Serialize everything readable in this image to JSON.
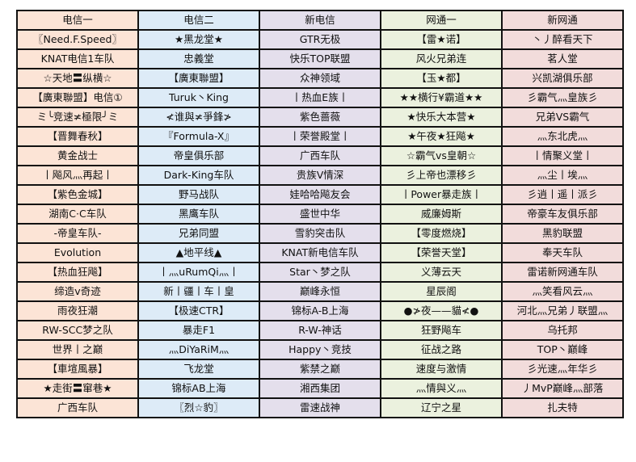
{
  "column_colors": [
    "#fce4d6",
    "#ddebf7",
    "#e4dfec",
    "#ebf1de",
    "#f2dcdb"
  ],
  "headers": [
    "电信一",
    "电信二",
    "新电信",
    "网通一",
    "新网通"
  ],
  "rows": [
    [
      "〖Need.F.Speed〗",
      "★黑龙堂★",
      "GTR无极",
      "【雷★诺】",
      "丶丿醉看天下"
    ],
    [
      "KNAT电信1车队",
      "忠義堂",
      "快乐TOP联盟",
      "风火兄弟连",
      "茗人堂"
    ],
    [
      "☆天地〓纵横☆",
      "【廣東聯盟】",
      "众神领域",
      "【玉★都】",
      "兴凯湖俱乐部"
    ],
    [
      "【廣東聯盟】电信①",
      "Turuk丶King",
      "丨热血E族丨",
      "★★横行¥霸道★★",
      "彡霸气灬皇族彡"
    ],
    [
      "ミ╰竞速≭極限╯ミ",
      "≮谁與≭爭鋒≯",
      "紫色蔷薇",
      "★快乐大本营★",
      "兄弟VS霸气"
    ],
    [
      "【晋舞春秋】",
      "『Formula-X』",
      "丨荣誉殿堂丨",
      "★午夜★狂飚★",
      "灬东北虎灬"
    ],
    [
      "黄金战士",
      "帝皇俱乐部",
      "广西车队",
      "☆霸气vs皇朝☆",
      "丨情聚义堂丨"
    ],
    [
      "丨飚风灬再起丨",
      "Dark-King车队",
      "贵族V情深",
      "彡上帝也漂移彡",
      "灬尘丨埃灬"
    ],
    [
      "【紫色金城】",
      "野马战队",
      "娃哈哈飚友会",
      "丨Power暴走族丨",
      "彡逍丨遥丨派彡"
    ],
    [
      "湖南C·C车队",
      "黑鹰车队",
      "盛世中华",
      "威廉姆斯",
      "帝豪车友俱乐部"
    ],
    [
      "-帝皇车队-",
      "兄弟同盟",
      "雪豹突击队",
      "【零度燃烧】",
      "黑豹联盟"
    ],
    [
      "Evolution",
      "▲地平线▲",
      "KNAT新电信车队",
      "【荣誉天堂】",
      "奉天车队"
    ],
    [
      "【热血狂飚】",
      "丨灬uRumQi灬丨",
      "Star丶梦之队",
      "义薄云天",
      "雷诺新网通车队"
    ],
    [
      "缔造v奇迹",
      "新丨疆丨车丨皇",
      "巅峰永恒",
      "星辰阁",
      "灬笑看风云灬"
    ],
    [
      "雨夜狂潮",
      "【极速CTR】",
      "锦标A-B上海",
      "●≯夜——貓≮●",
      "河北灬兄弟丿联盟灬"
    ],
    [
      "RW-SCC梦之队",
      "暴走F1",
      "R-W-神话",
      "狂野飚车",
      "乌托邦"
    ],
    [
      "世界丨之巅",
      "灬DiYaRiM灬",
      "Happy丶竞技",
      "征战之路",
      "TOP丶巅峰"
    ],
    [
      "【車塇風暴】",
      "飞龙堂",
      "紫禁之巅",
      "速度与激情",
      "彡光速灬年华彡"
    ],
    [
      "★走街〓窜巷★",
      "锦标AB上海",
      "湘西集团",
      "灬情與义灬",
      "丿MvP巅峰灬部落"
    ],
    [
      "广西车队",
      "〖烈☆豹〗",
      "雷速战神",
      "辽宁之星",
      "扎夫特"
    ]
  ]
}
